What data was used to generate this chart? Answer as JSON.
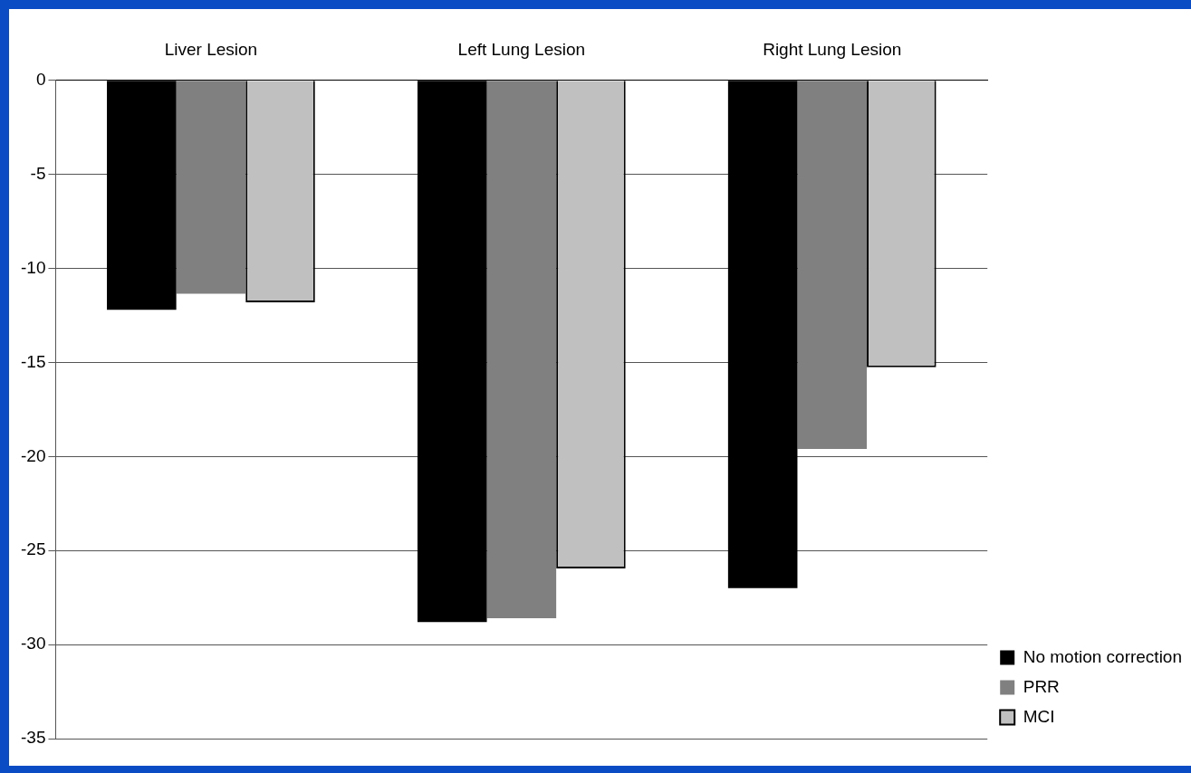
{
  "chart_data": {
    "type": "bar",
    "categories": [
      "Liver Lesion",
      "Left Lung Lesion",
      "Right Lung Lesion"
    ],
    "series": [
      {
        "name": "No motion correction",
        "color": "#000000",
        "values": [
          -12.2,
          -28.8,
          -27.0
        ]
      },
      {
        "name": "PRR",
        "color": "#808080",
        "values": [
          -11.35,
          -28.6,
          -19.6
        ]
      },
      {
        "name": "MCI",
        "color": "#c0c0c0",
        "values": [
          -11.8,
          -25.95,
          -15.25
        ]
      }
    ],
    "ylim": [
      -35,
      0
    ],
    "yticks": [
      -35,
      -30,
      -25,
      -20,
      -15,
      -10,
      -5,
      0
    ],
    "grid": "y",
    "legend": "bottom right"
  }
}
